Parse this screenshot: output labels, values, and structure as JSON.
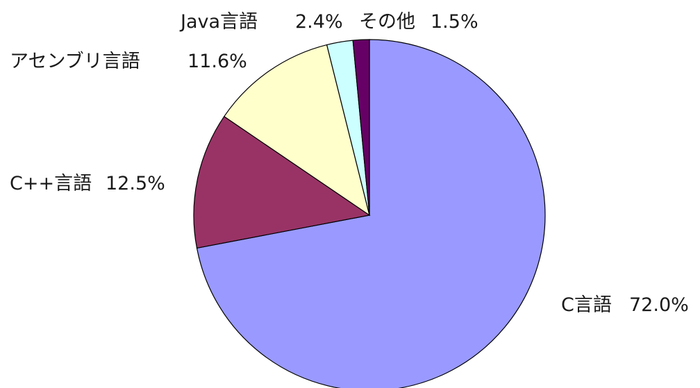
{
  "chart_data": {
    "type": "pie",
    "slices": [
      {
        "name": "C言語",
        "value": 72.0,
        "label": "72.0%",
        "color": "#9999ff"
      },
      {
        "name": "C++言語",
        "value": 12.5,
        "label": "12.5%",
        "color": "#993366"
      },
      {
        "name": "アセンブリ言語",
        "value": 11.6,
        "label": "11.6%",
        "color": "#ffffcc"
      },
      {
        "name": "Java言語",
        "value": 2.4,
        "label": "2.4%",
        "color": "#ccffff"
      },
      {
        "name": "その他",
        "value": 1.5,
        "label": "1.5%",
        "color": "#660066"
      }
    ],
    "start": "12 o'clock",
    "direction": "clockwise",
    "legend": "none (category and percentage labels beside slices)"
  }
}
